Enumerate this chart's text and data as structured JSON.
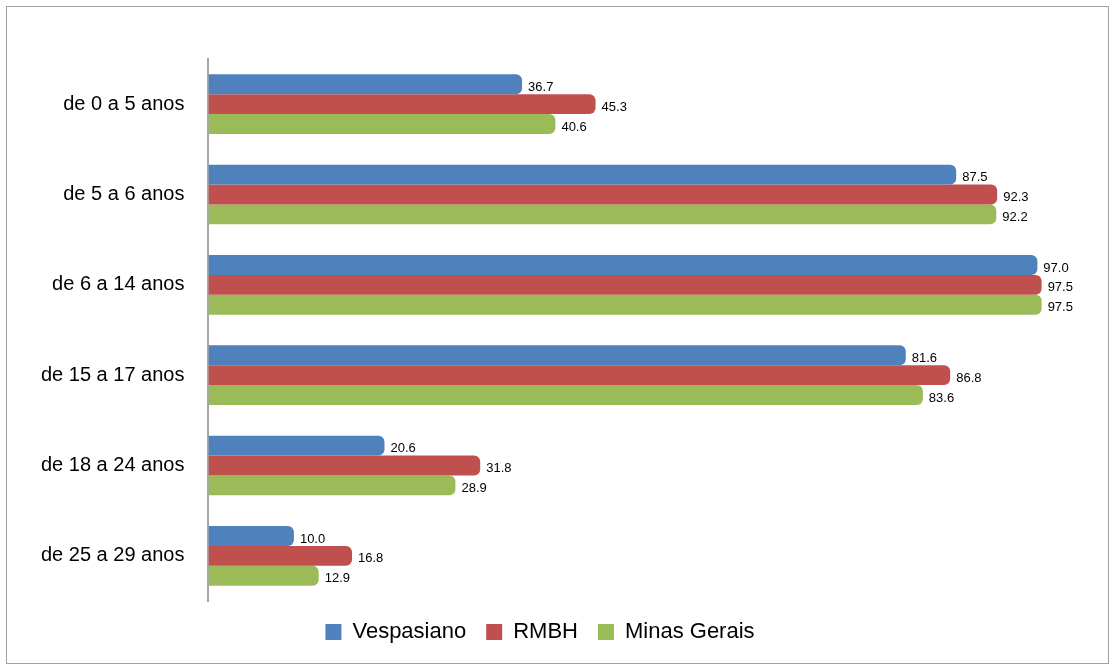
{
  "chart_data": {
    "type": "bar",
    "orientation": "horizontal",
    "categories": [
      "de 0 a 5 anos",
      "de 5 a 6 anos",
      "de 6 a 14 anos",
      "de 15 a 17 anos",
      "de 18 a 24 anos",
      "de 25 a 29 anos"
    ],
    "series": [
      {
        "name": "Vespasiano",
        "color": "#4f81bd",
        "values": [
          36.7,
          87.5,
          97.0,
          81.6,
          20.6,
          10.0
        ],
        "value_labels": [
          "36.7",
          "87.5",
          "97.0",
          "81.6",
          "20.6",
          "10.0"
        ]
      },
      {
        "name": "RMBH",
        "color": "#c0504d",
        "values": [
          45.3,
          92.3,
          97.5,
          86.8,
          31.8,
          16.8
        ],
        "value_labels": [
          "45.3",
          "92.3",
          "97.5",
          "86.8",
          "31.8",
          "16.8"
        ]
      },
      {
        "name": "Minas Gerais",
        "color": "#9bbb59",
        "values": [
          40.6,
          92.2,
          97.5,
          83.6,
          28.9,
          12.9
        ],
        "value_labels": [
          "40.6",
          "92.2",
          "97.5",
          "83.6",
          "28.9",
          "12.9"
        ]
      }
    ],
    "grid": false,
    "legend": "bottom",
    "tick_labels": "y"
  }
}
